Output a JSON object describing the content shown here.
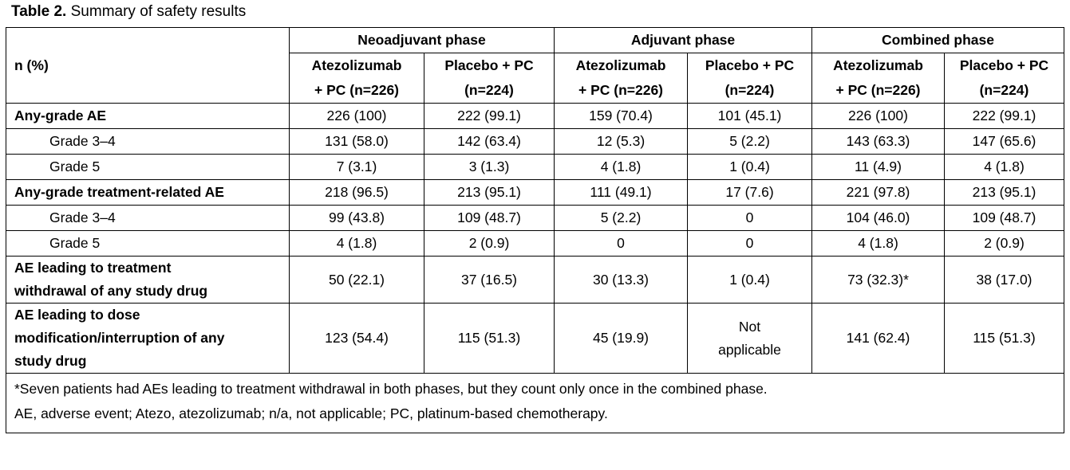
{
  "caption": {
    "label": "Table 2.",
    "text": " Summary of safety results"
  },
  "header": {
    "stub": "n (%)",
    "phases": [
      "Neoadjuvant phase",
      "Adjuvant phase",
      "Combined phase"
    ],
    "arm_line1": [
      "Atezolizumab",
      "Placebo + PC",
      "Atezolizumab",
      "Placebo + PC",
      "Atezolizumab",
      "Placebo + PC"
    ],
    "arm_line2": [
      "+ PC (n=226)",
      "(n=224)",
      "+ PC (n=226)",
      "(n=224)",
      "+ PC (n=226)",
      "(n=224)"
    ]
  },
  "rows": [
    {
      "label": "Any-grade AE",
      "values": [
        "226 (100)",
        "222 (99.1)",
        "159 (70.4)",
        "101 (45.1)",
        "226 (100)",
        "222 (99.1)"
      ]
    },
    {
      "label": "Grade 3–4",
      "values": [
        "131 (58.0)",
        "142 (63.4)",
        "12 (5.3)",
        "5 (2.2)",
        "143 (63.3)",
        "147 (65.6)"
      ]
    },
    {
      "label": "Grade 5",
      "values": [
        "7 (3.1)",
        "3 (1.3)",
        "4 (1.8)",
        "1 (0.4)",
        "11 (4.9)",
        "4 (1.8)"
      ]
    },
    {
      "label": "Any-grade treatment-related AE",
      "values": [
        "218 (96.5)",
        "213 (95.1)",
        "111 (49.1)",
        "17 (7.6)",
        "221 (97.8)",
        "213 (95.1)"
      ]
    },
    {
      "label": "Grade 3–4",
      "values": [
        "99 (43.8)",
        "109 (48.7)",
        "5 (2.2)",
        "0",
        "104 (46.0)",
        "109 (48.7)"
      ]
    },
    {
      "label": "Grade 5",
      "values": [
        "4 (1.8)",
        "2 (0.9)",
        "0",
        "0",
        "4 (1.8)",
        "2 (0.9)"
      ]
    },
    {
      "label_lines": [
        "AE leading to treatment",
        "withdrawal of any study drug"
      ],
      "values": [
        "50 (22.1)",
        "37 (16.5)",
        "30 (13.3)",
        "1 (0.4)",
        "73 (32.3)*",
        "38 (17.0)"
      ]
    },
    {
      "label_lines": [
        "AE leading to dose",
        "modification/interruption of any",
        "study drug"
      ],
      "values": [
        "123 (54.4)",
        "115 (51.3)",
        "45 (19.9)",
        "Not applicable",
        "141 (62.4)",
        "115 (51.3)"
      ],
      "value4_lines": [
        "Not",
        "applicable"
      ]
    }
  ],
  "footnotes": [
    "*Seven patients had AEs leading to treatment withdrawal in both phases, but they count only once in the combined phase.",
    "AE, adverse event; Atezo, atezolizumab; n/a, not applicable; PC, platinum-based chemotherapy."
  ]
}
